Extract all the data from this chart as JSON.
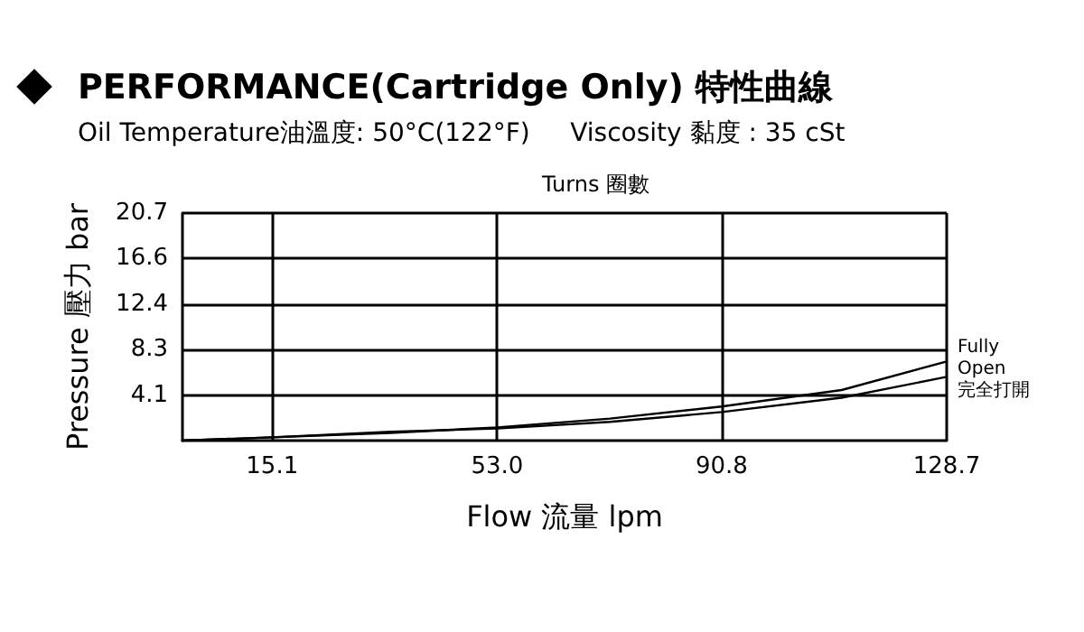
{
  "chart_data": {
    "type": "line",
    "title": "PERFORMANCE(Cartridge Only) 特性曲線",
    "subtitle": "Oil Temperature油溫度: 50°C(122°F)     Viscosity 黏度 : 35 cSt",
    "xlabel": "Flow 流量 lpm",
    "ylabel": "Pressure 壓力 bar",
    "annotations": [
      "Turns 圈數",
      {
        "text": "Fully\nOpen\n完全打開",
        "x": 128.7,
        "y": 5.8
      }
    ],
    "series": [
      {
        "color": "#000000",
        "x": [
          0,
          15.1,
          35,
          53,
          72,
          90.8,
          111,
          128.7
        ],
        "values": [
          0,
          0.3,
          0.7,
          1.2,
          2.0,
          3.1,
          4.6,
          7.2
        ]
      },
      {
        "color": "#000000",
        "x": [
          0,
          15.1,
          35,
          53,
          72,
          90.8,
          111,
          128.7
        ],
        "values": [
          0,
          0.3,
          0.8,
          1.1,
          1.7,
          2.6,
          3.9,
          5.8
        ]
      }
    ],
    "xlim": [
      0,
      128.7
    ],
    "xticks": [
      15.1,
      {
        "value": 53,
        "label": "53.0"
      },
      90.8,
      128.7
    ],
    "ylim": [
      0,
      20.7
    ],
    "yticks": [
      4.1,
      8.3,
      12.4,
      16.6,
      20.7
    ],
    "grid": true,
    "marker": "none",
    "line_style": "solid"
  }
}
